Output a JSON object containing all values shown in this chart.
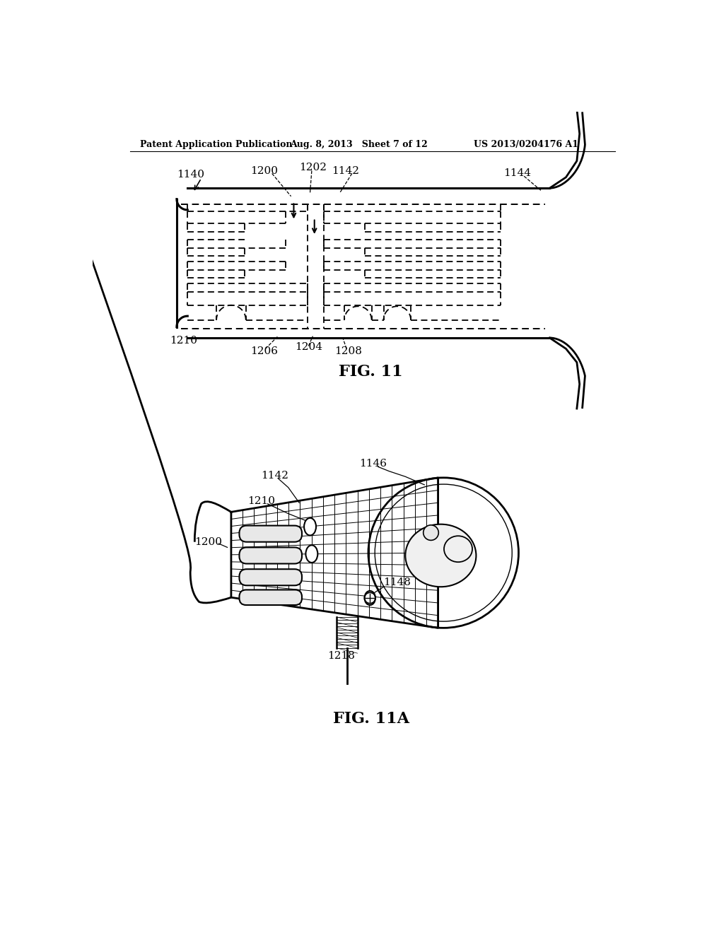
{
  "bg_color": "#ffffff",
  "header_left": "Patent Application Publication",
  "header_mid": "Aug. 8, 2013   Sheet 7 of 12",
  "header_right": "US 2013/0204176 A1",
  "fig11_caption": "FIG. 11",
  "fig11a_caption": "FIG. 11A",
  "line_color": "#000000"
}
